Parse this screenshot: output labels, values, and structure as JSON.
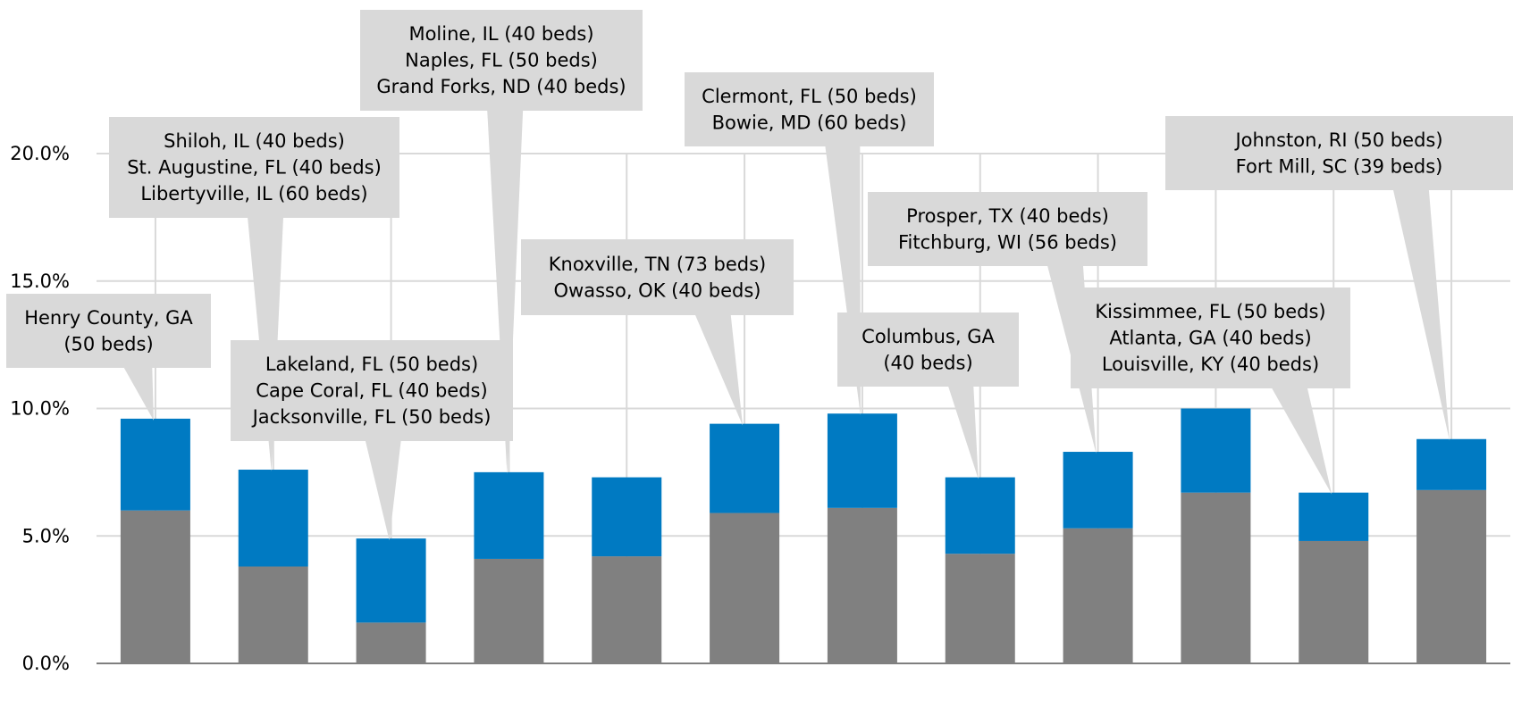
{
  "chart_data": {
    "type": "bar",
    "stacked": true,
    "ylim": [
      0,
      0.2
    ],
    "y_ticks": [
      "0.0%",
      "5.0%",
      "10.0%",
      "15.0%",
      "20.0%"
    ],
    "grid": true,
    "colors": {
      "bottom": "#808080",
      "top": "#007ac2",
      "grid": "#d9d9d9",
      "callout": "#d9d9d9"
    },
    "series": [
      {
        "name": "",
        "values": [
          0.06,
          0.038,
          0.016,
          0.041,
          0.042,
          0.059,
          0.061,
          0.043,
          0.053,
          0.067,
          0.048,
          0.068
        ]
      },
      {
        "name": "",
        "values": [
          0.036,
          0.038,
          0.033,
          0.034,
          0.031,
          0.035,
          0.037,
          0.03,
          0.03,
          0.033,
          0.019,
          0.02
        ]
      }
    ],
    "annotations": [
      {
        "bar": 0,
        "lines": [
          "Henry County, GA",
          "(50 beds)"
        ]
      },
      {
        "bar": 1,
        "lines": [
          "Shiloh, IL (40 beds)",
          "St. Augustine, FL (40 beds)",
          "Libertyville, IL (60 beds)"
        ]
      },
      {
        "bar": 2,
        "lines": [
          "Lakeland, FL (50 beds)",
          "Cape Coral, FL (40 beds)",
          "Jacksonville, FL (50 beds)"
        ]
      },
      {
        "bar": 3,
        "lines": [
          "Moline, IL (40 beds)",
          "Naples, FL (50 beds)",
          "Grand Forks, ND (40 beds)"
        ]
      },
      {
        "bar": 5,
        "lines": [
          "Knoxville, TN (73 beds)",
          "Owasso, OK (40 beds)"
        ]
      },
      {
        "bar": 6,
        "lines": [
          "Clermont, FL (50 beds)",
          "Bowie, MD (60 beds)"
        ]
      },
      {
        "bar": 7,
        "lines": [
          "Columbus, GA",
          "(40 beds)"
        ]
      },
      {
        "bar": 8,
        "lines": [
          "Prosper, TX (40 beds)",
          "Fitchburg, WI (56 beds)"
        ]
      },
      {
        "bar": 10,
        "lines": [
          "Kissimmee, FL (50 beds)",
          "Atlanta, GA (40 beds)",
          "Louisville, KY (40 beds)"
        ]
      },
      {
        "bar": 11,
        "lines": [
          "Johnston, RI (50 beds)",
          "Fort Mill, SC (39 beds)"
        ]
      }
    ]
  }
}
